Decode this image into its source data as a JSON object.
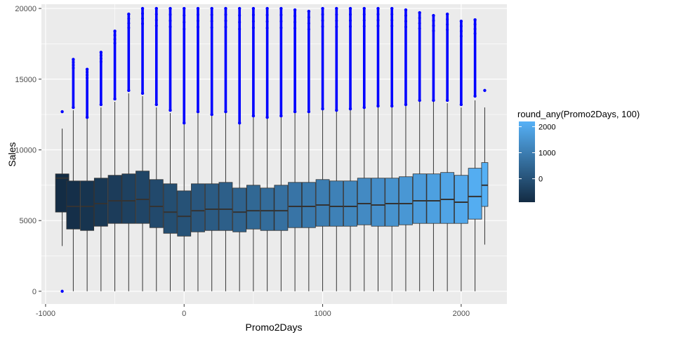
{
  "chart_data": {
    "type": "boxplot",
    "xlabel": "Promo2Days",
    "ylabel": "Sales",
    "xlim": [
      -1030,
      2330
    ],
    "ylim": [
      -900,
      20300
    ],
    "x_ticks": [
      -1000,
      0,
      1000,
      2000
    ],
    "x_tick_labels": [
      "-1000",
      "0",
      "1000",
      "2000"
    ],
    "y_ticks": [
      0,
      5000,
      10000,
      15000,
      20000
    ],
    "y_tick_labels": [
      "0",
      "5000",
      "10000",
      "15000",
      "20000"
    ],
    "grid": true,
    "legend": {
      "title": "round_any(Promo2Days, 100)",
      "position": "right",
      "range": [
        -900,
        2200
      ],
      "ticks": [
        0,
        1000,
        2000
      ],
      "tick_labels": [
        "0",
        "1000",
        "2000"
      ],
      "low_color": "#132b43",
      "high_color": "#56b1f7"
    },
    "outlier_color": "#0000ff",
    "boxes": [
      {
        "x": -880,
        "q1": 5600,
        "median": 8000,
        "q3": 8300,
        "whisker_low": 3200,
        "whisker_high": 11500,
        "outlier_min": 12700,
        "outlier_max": 12700,
        "low_outlier": 0
      },
      {
        "x": -800,
        "q1": 4400,
        "median": 6000,
        "q3": 7800,
        "whisker_low": 0,
        "whisker_high": 12800,
        "outlier_min": 13000,
        "outlier_max": 16400
      },
      {
        "x": -700,
        "q1": 4300,
        "median": 6000,
        "q3": 7800,
        "whisker_low": 0,
        "whisker_high": 12200,
        "outlier_min": 12300,
        "outlier_max": 15700
      },
      {
        "x": -600,
        "q1": 4600,
        "median": 6200,
        "q3": 8000,
        "whisker_low": 0,
        "whisker_high": 13000,
        "outlier_min": 13200,
        "outlier_max": 16900
      },
      {
        "x": -500,
        "q1": 4800,
        "median": 6400,
        "q3": 8200,
        "whisker_low": 0,
        "whisker_high": 13400,
        "outlier_min": 13600,
        "outlier_max": 18400
      },
      {
        "x": -400,
        "q1": 4800,
        "median": 6400,
        "q3": 8300,
        "whisker_low": 0,
        "whisker_high": 14000,
        "outlier_min": 14200,
        "outlier_max": 19600
      },
      {
        "x": -300,
        "q1": 4800,
        "median": 6500,
        "q3": 8500,
        "whisker_low": 0,
        "whisker_high": 13800,
        "outlier_min": 14000,
        "outlier_max": 20000
      },
      {
        "x": -200,
        "q1": 4500,
        "median": 6000,
        "q3": 7900,
        "whisker_low": 0,
        "whisker_high": 13000,
        "outlier_min": 13200,
        "outlier_max": 20000
      },
      {
        "x": -100,
        "q1": 4100,
        "median": 5600,
        "q3": 7600,
        "whisker_low": 0,
        "whisker_high": 12600,
        "outlier_min": 12800,
        "outlier_max": 20000
      },
      {
        "x": 0,
        "q1": 3900,
        "median": 5300,
        "q3": 7100,
        "whisker_low": 0,
        "whisker_high": 11800,
        "outlier_min": 11900,
        "outlier_max": 20000
      },
      {
        "x": 100,
        "q1": 4200,
        "median": 5700,
        "q3": 7600,
        "whisker_low": 0,
        "whisker_high": 12600,
        "outlier_min": 12700,
        "outlier_max": 20000
      },
      {
        "x": 200,
        "q1": 4300,
        "median": 5800,
        "q3": 7600,
        "whisker_low": 0,
        "whisker_high": 12400,
        "outlier_min": 12500,
        "outlier_max": 20000
      },
      {
        "x": 300,
        "q1": 4300,
        "median": 5800,
        "q3": 7700,
        "whisker_low": 0,
        "whisker_high": 12600,
        "outlier_min": 12700,
        "outlier_max": 20000
      },
      {
        "x": 400,
        "q1": 4200,
        "median": 5600,
        "q3": 7300,
        "whisker_low": 0,
        "whisker_high": 11900,
        "outlier_min": 11900,
        "outlier_max": 20000
      },
      {
        "x": 500,
        "q1": 4400,
        "median": 5700,
        "q3": 7500,
        "whisker_low": 0,
        "whisker_high": 12300,
        "outlier_min": 12400,
        "outlier_max": 20000
      },
      {
        "x": 600,
        "q1": 4300,
        "median": 5700,
        "q3": 7300,
        "whisker_low": 0,
        "whisker_high": 12200,
        "outlier_min": 12300,
        "outlier_max": 20000
      },
      {
        "x": 700,
        "q1": 4300,
        "median": 5700,
        "q3": 7500,
        "whisker_low": 0,
        "whisker_high": 12300,
        "outlier_min": 12400,
        "outlier_max": 20000
      },
      {
        "x": 800,
        "q1": 4500,
        "median": 6000,
        "q3": 7700,
        "whisker_low": 0,
        "whisker_high": 12600,
        "outlier_min": 12700,
        "outlier_max": 19900
      },
      {
        "x": 900,
        "q1": 4500,
        "median": 6000,
        "q3": 7700,
        "whisker_low": 0,
        "whisker_high": 12600,
        "outlier_min": 12700,
        "outlier_max": 19800
      },
      {
        "x": 1000,
        "q1": 4600,
        "median": 6100,
        "q3": 7900,
        "whisker_low": 0,
        "whisker_high": 12800,
        "outlier_min": 12900,
        "outlier_max": 20000
      },
      {
        "x": 1100,
        "q1": 4600,
        "median": 6000,
        "q3": 7800,
        "whisker_low": 0,
        "whisker_high": 12700,
        "outlier_min": 12800,
        "outlier_max": 20000
      },
      {
        "x": 1200,
        "q1": 4600,
        "median": 6000,
        "q3": 7800,
        "whisker_low": 0,
        "whisker_high": 12800,
        "outlier_min": 12900,
        "outlier_max": 20000
      },
      {
        "x": 1300,
        "q1": 4700,
        "median": 6200,
        "q3": 8000,
        "whisker_low": 0,
        "whisker_high": 12900,
        "outlier_min": 13000,
        "outlier_max": 20000
      },
      {
        "x": 1400,
        "q1": 4600,
        "median": 6100,
        "q3": 8000,
        "whisker_low": 0,
        "whisker_high": 13000,
        "outlier_min": 13100,
        "outlier_max": 20000
      },
      {
        "x": 1500,
        "q1": 4600,
        "median": 6200,
        "q3": 8000,
        "whisker_low": 0,
        "whisker_high": 13000,
        "outlier_min": 13100,
        "outlier_max": 20000
      },
      {
        "x": 1600,
        "q1": 4700,
        "median": 6200,
        "q3": 8100,
        "whisker_low": 0,
        "whisker_high": 13100,
        "outlier_min": 13200,
        "outlier_max": 19900
      },
      {
        "x": 1700,
        "q1": 4800,
        "median": 6400,
        "q3": 8300,
        "whisker_low": 0,
        "whisker_high": 13400,
        "outlier_min": 13500,
        "outlier_max": 19700
      },
      {
        "x": 1800,
        "q1": 4800,
        "median": 6400,
        "q3": 8300,
        "whisker_low": 0,
        "whisker_high": 13400,
        "outlier_min": 13500,
        "outlier_max": 19500
      },
      {
        "x": 1900,
        "q1": 4800,
        "median": 6500,
        "q3": 8400,
        "whisker_low": 0,
        "whisker_high": 13300,
        "outlier_min": 13500,
        "outlier_max": 19600
      },
      {
        "x": 2000,
        "q1": 4800,
        "median": 6300,
        "q3": 8200,
        "whisker_low": 0,
        "whisker_high": 13000,
        "outlier_min": 13200,
        "outlier_max": 19100
      },
      {
        "x": 2100,
        "q1": 5100,
        "median": 6700,
        "q3": 8700,
        "whisker_low": 0,
        "whisker_high": 13500,
        "outlier_min": 13800,
        "outlier_max": 19200
      },
      {
        "x": 2170,
        "q1": 6000,
        "median": 7500,
        "q3": 9100,
        "whisker_low": 3300,
        "whisker_high": 13000,
        "outlier_min": 14200,
        "outlier_max": 14200
      }
    ]
  }
}
